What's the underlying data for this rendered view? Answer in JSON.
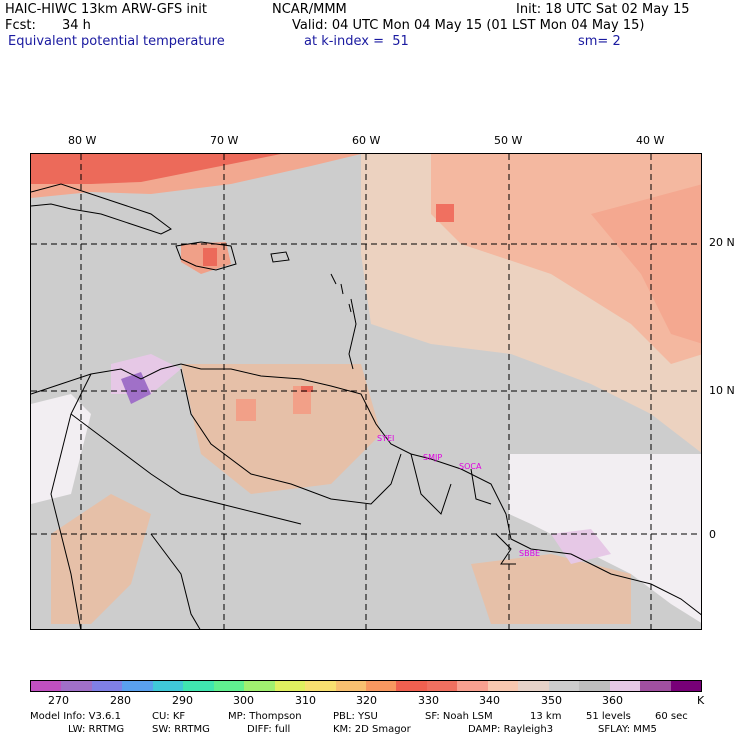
{
  "header": {
    "title_left": "HAIC-HIWC 13km ARW-GFS init",
    "org": "NCAR/MMM",
    "init": "Init: 18 UTC Sat 02 May 15",
    "fcst_label": "Fcst:",
    "fcst_value": "34 h",
    "valid": "Valid: 04 UTC Mon 04 May 15 (01 LST Mon 04 May 15)",
    "field": "Equivalent potential temperature",
    "level": "at k-index =  51",
    "smooth": "sm= 2"
  },
  "map": {
    "lon_labels": [
      "80 W",
      "70 W",
      "60 W",
      "50 W",
      "40 W"
    ],
    "lat_labels": [
      "20 N",
      "10 N",
      "0"
    ],
    "stations": [
      "SYEI",
      "SMJP",
      "SOCA",
      "SBBE"
    ],
    "colors": {
      "background_gray": "#cdcdcd",
      "land_gray": "#b4b4b4"
    }
  },
  "colorbar": {
    "colors": [
      "#c050c0",
      "#a070c8",
      "#8080e6",
      "#5aa0ee",
      "#40c8d8",
      "#40e6b0",
      "#60f090",
      "#a0f070",
      "#e0f060",
      "#f8e070",
      "#f8c070",
      "#f89860",
      "#f06050",
      "#f07060",
      "#f8a090",
      "#f8c8b0",
      "#e6d2c8",
      "#cdcdcd",
      "#bebebe",
      "#e6c8e6",
      "#a050a0",
      "#780078"
    ],
    "labels": [
      "270",
      "280",
      "290",
      "300",
      "310",
      "320",
      "330",
      "340",
      "350",
      "360",
      "K"
    ]
  },
  "footer": {
    "line1": [
      "Model Info: V3.6.1",
      "CU: KF",
      "MP: Thompson",
      "PBL: YSU",
      "SF: Noah LSM",
      "13 km",
      "51 levels",
      "60 sec"
    ],
    "line2": [
      "LW: RRTMG",
      "SW: RRTMG",
      "DIFF: full",
      "KM: 2D Smagor",
      "DAMP: Rayleigh3",
      "SFLAY: MM5"
    ]
  }
}
